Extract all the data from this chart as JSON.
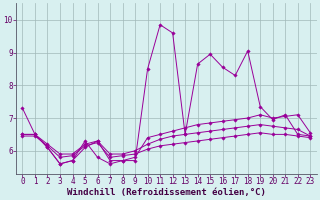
{
  "xlabel": "Windchill (Refroidissement éolien,°C)",
  "background_color": "#d8f0f0",
  "line_color": "#990099",
  "xlim": [
    -0.5,
    23.5
  ],
  "ylim": [
    5.3,
    10.5
  ],
  "yticks": [
    6,
    7,
    8,
    9,
    10
  ],
  "xticks": [
    0,
    1,
    2,
    3,
    4,
    5,
    6,
    7,
    8,
    9,
    10,
    11,
    12,
    13,
    14,
    15,
    16,
    17,
    18,
    19,
    20,
    21,
    22,
    23
  ],
  "series": [
    {
      "x": [
        0,
        1,
        2,
        3,
        4,
        5,
        6,
        7,
        8,
        9,
        10,
        11,
        12,
        13,
        14,
        15,
        16,
        17,
        18,
        19,
        20,
        21,
        22,
        23
      ],
      "y": [
        7.3,
        6.5,
        6.1,
        5.6,
        5.7,
        6.3,
        5.8,
        5.6,
        5.7,
        5.7,
        8.5,
        9.85,
        9.6,
        6.5,
        8.65,
        8.95,
        8.55,
        8.3,
        9.05,
        7.35,
        6.95,
        7.1,
        6.5,
        6.45
      ]
    },
    {
      "x": [
        0,
        1,
        2,
        3,
        4,
        5,
        6,
        7,
        8,
        9,
        10,
        11,
        12,
        13,
        14,
        15,
        16,
        17,
        18,
        19,
        20,
        21,
        22,
        23
      ],
      "y": [
        6.5,
        6.5,
        6.1,
        5.6,
        5.7,
        6.1,
        6.3,
        5.7,
        5.7,
        5.8,
        6.4,
        6.5,
        6.6,
        6.7,
        6.8,
        6.85,
        6.9,
        6.95,
        7.0,
        7.1,
        7.0,
        7.05,
        7.1,
        6.55
      ]
    },
    {
      "x": [
        0,
        1,
        2,
        3,
        4,
        5,
        6,
        7,
        8,
        9,
        10,
        11,
        12,
        13,
        14,
        15,
        16,
        17,
        18,
        19,
        20,
        21,
        22,
        23
      ],
      "y": [
        6.5,
        6.5,
        6.2,
        5.9,
        5.9,
        6.2,
        6.3,
        5.9,
        5.9,
        6.0,
        6.2,
        6.35,
        6.45,
        6.5,
        6.55,
        6.6,
        6.65,
        6.7,
        6.75,
        6.8,
        6.75,
        6.7,
        6.65,
        6.45
      ]
    },
    {
      "x": [
        0,
        1,
        2,
        3,
        4,
        5,
        6,
        7,
        8,
        9,
        10,
        11,
        12,
        13,
        14,
        15,
        16,
        17,
        18,
        19,
        20,
        21,
        22,
        23
      ],
      "y": [
        6.45,
        6.45,
        6.15,
        5.8,
        5.85,
        6.15,
        6.25,
        5.8,
        5.85,
        5.9,
        6.05,
        6.15,
        6.2,
        6.25,
        6.3,
        6.35,
        6.4,
        6.45,
        6.5,
        6.55,
        6.5,
        6.5,
        6.45,
        6.4
      ]
    }
  ],
  "grid_color": "#a0b8b8",
  "tick_fontsize": 5.5,
  "xlabel_fontsize": 6.5
}
